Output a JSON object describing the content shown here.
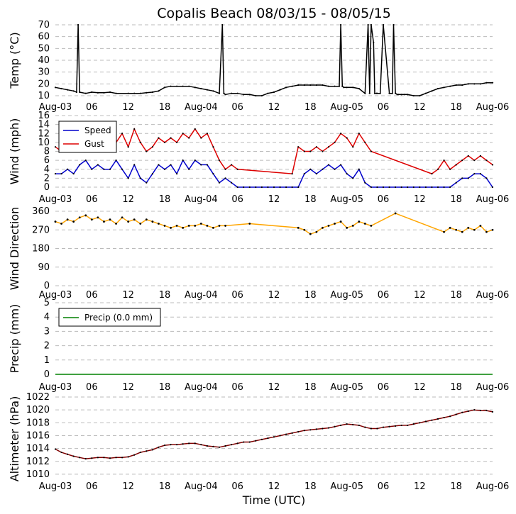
{
  "title": "Copalis Beach 08/03/15 - 08/05/15",
  "xlabel": "Time (UTC)",
  "x_ticks": [
    "Aug-03",
    "06",
    "12",
    "18",
    "Aug-04",
    "06",
    "12",
    "18",
    "Aug-05",
    "06",
    "12",
    "18",
    "Aug-06"
  ],
  "colors": {
    "temp": "#000000",
    "speed": "#0000cc",
    "gust": "#dd0000",
    "direction": "#ffa500",
    "precip": "#008000",
    "altimeter": "#800000",
    "grid": "#bbbbbb"
  },
  "chart_data": [
    {
      "type": "line",
      "panel": "temp",
      "ylabel": "Temp (°C)",
      "ylim": [
        10,
        70
      ],
      "yticks": [
        10,
        20,
        30,
        40,
        50,
        60,
        70
      ],
      "x_range_hours": [
        0,
        72
      ],
      "series": [
        {
          "name": "Temp",
          "color": "#000000",
          "x": [
            0,
            1,
            2,
            3,
            3.5,
            3.75,
            4,
            5,
            6,
            7,
            8,
            9,
            10,
            12,
            13,
            14,
            15,
            16,
            17,
            18,
            19,
            20,
            21,
            22,
            23,
            24,
            25,
            26,
            27,
            27.5,
            27.75,
            28,
            29,
            30,
            31,
            32,
            33,
            34,
            35,
            36,
            37,
            38,
            39,
            40,
            41,
            42,
            43,
            44,
            45,
            46,
            46.75,
            47,
            47.25,
            47.5,
            48,
            49,
            50,
            51,
            51.5,
            51.75,
            52,
            52.4,
            52.6,
            52.9,
            53,
            53.5,
            54,
            55,
            55.5,
            55.7,
            56,
            56.3,
            56.5,
            57,
            57.5,
            58,
            59,
            60,
            61,
            62,
            63,
            64,
            65,
            66,
            67,
            68,
            69,
            70,
            71,
            72
          ],
          "y": [
            17,
            16,
            15,
            14,
            13,
            70,
            13,
            12,
            13,
            12.5,
            12.5,
            13,
            12,
            12,
            12,
            12,
            12.5,
            13,
            14,
            17,
            18,
            18,
            18,
            18,
            17,
            16,
            15,
            14,
            12,
            70,
            12,
            11,
            12,
            12,
            11,
            11,
            10,
            10,
            12,
            13,
            15,
            17,
            18,
            19,
            19,
            19,
            19,
            19,
            18,
            18,
            18,
            70,
            18,
            17,
            17,
            17,
            16,
            12,
            70,
            12,
            70,
            55,
            12,
            12,
            12,
            12,
            70,
            12,
            12,
            70,
            12,
            11,
            11,
            11,
            11,
            11,
            10,
            10,
            12,
            14,
            16,
            17,
            18,
            19,
            19,
            20,
            20,
            20,
            21,
            21
          ]
        }
      ]
    },
    {
      "type": "line",
      "panel": "wind",
      "ylabel": "Wind (mph)",
      "ylim": [
        0,
        16
      ],
      "yticks": [
        0,
        2,
        4,
        6,
        8,
        10,
        12,
        14,
        16
      ],
      "legend": [
        "Speed",
        "Gust"
      ],
      "series": [
        {
          "name": "Speed",
          "color": "#0000cc",
          "x": [
            0,
            1,
            2,
            3,
            4,
            5,
            6,
            7,
            8,
            9,
            10,
            11,
            12,
            13,
            14,
            15,
            16,
            17,
            18,
            19,
            20,
            21,
            22,
            23,
            24,
            25,
            26,
            27,
            28,
            29,
            30,
            31,
            32,
            33,
            34,
            35,
            36,
            37,
            38,
            39,
            40,
            41,
            42,
            43,
            44,
            45,
            46,
            47,
            48,
            49,
            50,
            51,
            52,
            53,
            54,
            55,
            56,
            57,
            58,
            59,
            60,
            61,
            62,
            63,
            64,
            65,
            66,
            67,
            68,
            69,
            70,
            71,
            72
          ],
          "y": [
            3,
            3,
            4,
            3,
            5,
            6,
            4,
            5,
            4,
            4,
            6,
            4,
            2,
            5,
            2,
            1,
            3,
            5,
            4,
            5,
            3,
            6,
            4,
            6,
            5,
            5,
            3,
            1,
            2,
            1,
            0,
            0,
            0,
            0,
            0,
            0,
            0,
            0,
            0,
            0,
            0,
            3,
            4,
            3,
            4,
            5,
            4,
            5,
            3,
            2,
            4,
            1,
            0,
            0,
            0,
            0,
            0,
            0,
            0,
            0,
            0,
            0,
            0,
            0,
            0,
            0,
            1,
            2,
            2,
            3,
            3,
            2,
            0
          ]
        },
        {
          "name": "Gust",
          "color": "#dd0000",
          "x": [
            0,
            1,
            2,
            3,
            4,
            5,
            6,
            7,
            8,
            9,
            10,
            11,
            12,
            13,
            14,
            15,
            16,
            17,
            18,
            19,
            20,
            21,
            22,
            23,
            24,
            25,
            26,
            27,
            28,
            29,
            30,
            39,
            40,
            41,
            42,
            43,
            44,
            45,
            46,
            47,
            48,
            49,
            50,
            51,
            52,
            62,
            63,
            64,
            65,
            66,
            67,
            68,
            69,
            70,
            71,
            72
          ],
          "y": [
            9,
            8,
            9,
            10,
            10,
            11,
            9,
            10,
            10,
            11,
            10,
            12,
            9,
            13,
            10,
            8,
            9,
            11,
            10,
            11,
            10,
            12,
            11,
            13,
            11,
            12,
            9,
            6,
            4,
            5,
            4,
            3,
            9,
            8,
            8,
            9,
            8,
            9,
            10,
            12,
            11,
            9,
            12,
            10,
            8,
            3,
            4,
            6,
            4,
            5,
            6,
            7,
            6,
            7,
            6,
            5
          ]
        }
      ]
    },
    {
      "type": "scatter",
      "panel": "direction",
      "ylabel": "Wind Direction",
      "ylim": [
        0,
        360
      ],
      "yticks": [
        0,
        90,
        180,
        270,
        360
      ],
      "series": [
        {
          "name": "Direction",
          "color": "#ffa500",
          "x": [
            0,
            1,
            2,
            3,
            4,
            5,
            6,
            7,
            8,
            9,
            10,
            11,
            12,
            13,
            14,
            15,
            16,
            17,
            18,
            19,
            20,
            21,
            22,
            23,
            24,
            25,
            26,
            27,
            28,
            32,
            40,
            41,
            42,
            43,
            44,
            45,
            46,
            47,
            48,
            49,
            50,
            51,
            52,
            56,
            64,
            65,
            66,
            67,
            68,
            69,
            70,
            71,
            72
          ],
          "y": [
            310,
            300,
            320,
            310,
            330,
            340,
            320,
            330,
            310,
            320,
            300,
            330,
            310,
            320,
            300,
            320,
            310,
            300,
            290,
            280,
            290,
            280,
            290,
            290,
            300,
            290,
            280,
            290,
            290,
            300,
            280,
            270,
            250,
            260,
            280,
            290,
            300,
            310,
            280,
            290,
            310,
            300,
            290,
            350,
            260,
            280,
            270,
            260,
            280,
            270,
            290,
            260,
            270
          ]
        }
      ]
    },
    {
      "type": "line",
      "panel": "precip",
      "ylabel": "Precip (mm)",
      "ylim": [
        0,
        5
      ],
      "yticks": [
        0,
        1,
        2,
        3,
        4,
        5
      ],
      "legend": [
        "Precip (0.0 mm)"
      ],
      "series": [
        {
          "name": "Precip (0.0 mm)",
          "color": "#008000",
          "x": [
            0,
            72
          ],
          "y": [
            0,
            0
          ]
        }
      ]
    },
    {
      "type": "line",
      "panel": "altimeter",
      "ylabel": "Altimeter (hPa)",
      "ylim": [
        1009,
        1022
      ],
      "yticks": [
        1010,
        1012,
        1014,
        1016,
        1018,
        1020,
        1022
      ],
      "series": [
        {
          "name": "Altimeter",
          "color": "#800000",
          "x": [
            0,
            1,
            2,
            3,
            4,
            5,
            6,
            7,
            8,
            9,
            10,
            11,
            12,
            13,
            14,
            15,
            16,
            17,
            18,
            19,
            20,
            21,
            22,
            23,
            24,
            25,
            26,
            27,
            28,
            29,
            30,
            31,
            32,
            33,
            34,
            35,
            36,
            37,
            38,
            39,
            40,
            41,
            42,
            43,
            44,
            45,
            46,
            47,
            48,
            49,
            50,
            51,
            52,
            53,
            54,
            55,
            56,
            57,
            58,
            59,
            60,
            61,
            62,
            63,
            64,
            65,
            66,
            67,
            68,
            69,
            70,
            71,
            72
          ],
          "y": [
            1013.9,
            1013.4,
            1013.1,
            1012.8,
            1012.6,
            1012.4,
            1012.5,
            1012.6,
            1012.6,
            1012.5,
            1012.6,
            1012.6,
            1012.7,
            1013.0,
            1013.4,
            1013.6,
            1013.8,
            1014.2,
            1014.5,
            1014.6,
            1014.6,
            1014.7,
            1014.8,
            1014.8,
            1014.6,
            1014.4,
            1014.3,
            1014.2,
            1014.4,
            1014.6,
            1014.8,
            1015.0,
            1015.0,
            1015.2,
            1015.4,
            1015.6,
            1015.8,
            1016.0,
            1016.2,
            1016.4,
            1016.6,
            1016.8,
            1016.9,
            1017.0,
            1017.1,
            1017.2,
            1017.4,
            1017.6,
            1017.8,
            1017.7,
            1017.6,
            1017.3,
            1017.1,
            1017.1,
            1017.3,
            1017.4,
            1017.5,
            1017.6,
            1017.6,
            1017.8,
            1018.0,
            1018.2,
            1018.4,
            1018.6,
            1018.8,
            1019.0,
            1019.3,
            1019.6,
            1019.8,
            1020.0,
            1019.9,
            1019.9,
            1019.7
          ]
        }
      ]
    }
  ]
}
